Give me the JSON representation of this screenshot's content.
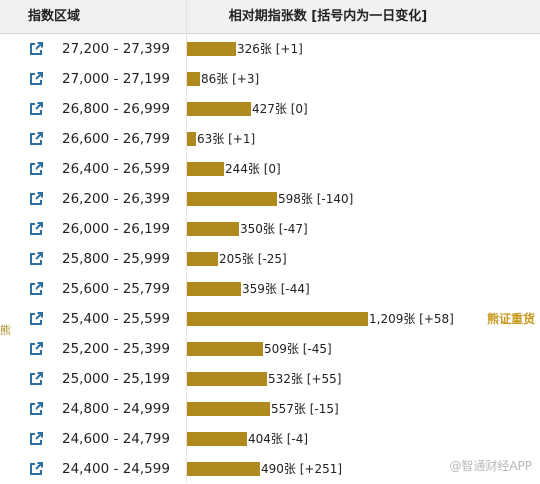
{
  "header": {
    "left": "指数区域",
    "right": "相对期指张数 [括号内为一日变化]"
  },
  "side_label": "熊",
  "watermark": "@智通财经APP",
  "colors": {
    "bar": "#b08a1e",
    "note": "#c89a20",
    "link_icon": "#2f6f9f"
  },
  "icons": {
    "row_link": "external-link-icon"
  },
  "chart_data": {
    "type": "bar",
    "orientation": "horizontal",
    "categories": [
      "27,200 - 27,399",
      "27,000 - 27,199",
      "26,800 - 26,999",
      "26,600 - 26,799",
      "26,400 - 26,599",
      "26,200 - 26,399",
      "26,000 - 26,199",
      "25,800 - 25,999",
      "25,600 - 25,799",
      "25,400 - 25,599",
      "25,200 - 25,399",
      "25,000 - 25,199",
      "24,800 - 24,999",
      "24,600 - 24,799",
      "24,400 - 24,599"
    ],
    "values": [
      326,
      86,
      427,
      63,
      244,
      598,
      350,
      205,
      359,
      1209,
      509,
      532,
      557,
      404,
      490
    ],
    "labels": [
      "326张 [+1]",
      "86张 [+3]",
      "427张 [0]",
      "63张 [+1]",
      "244张 [0]",
      "598张 [-140]",
      "350张 [-47]",
      "205张 [-25]",
      "359张 [-44]",
      "1,209张 [+58]",
      "509张 [-45]",
      "532张 [+55]",
      "557张 [-15]",
      "404张 [-4]",
      "490张 [+251]"
    ],
    "daily_change": [
      1,
      3,
      0,
      1,
      0,
      -140,
      -47,
      -25,
      -44,
      58,
      -45,
      55,
      -15,
      -4,
      251
    ],
    "annotations": [
      {
        "category": "25,400 - 25,599",
        "text": "熊证重货"
      }
    ],
    "xlim": [
      0,
      1209
    ],
    "grid": false,
    "legend": "none"
  }
}
